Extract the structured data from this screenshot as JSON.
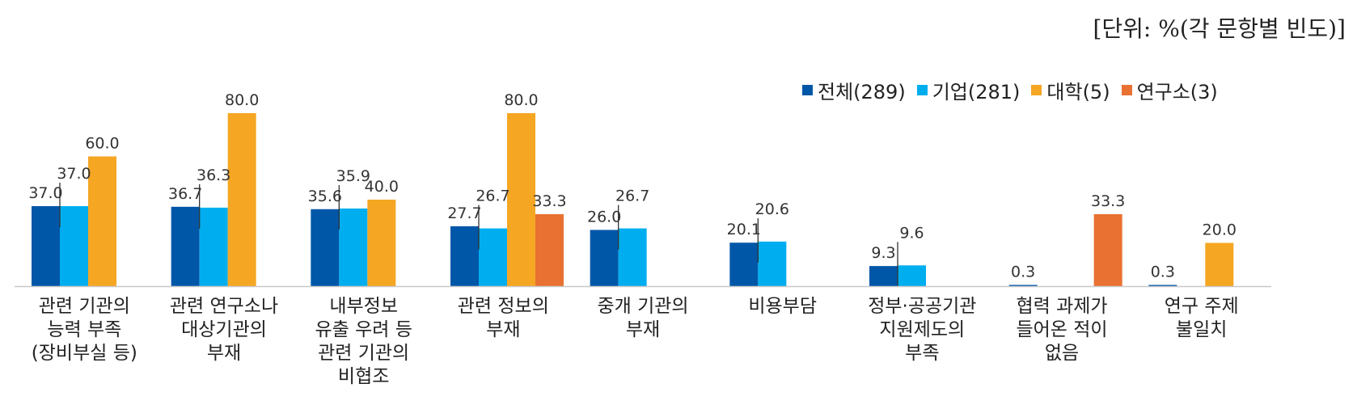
{
  "unit_label": "[단위: %(각 문항별 빈도)]",
  "chart_data": {
    "type": "bar",
    "ylim": [
      0,
      100
    ],
    "grid": false,
    "legend_position": "top-right",
    "categories": [
      "관련 기관의\n능력 부족\n(장비부실 등)",
      "관련 연구소나\n대상기관의\n부재",
      "내부정보\n유출 우려 등\n관련 기관의\n비협조",
      "관련 정보의\n부재",
      "중개 기관의\n부재",
      "비용부담",
      "정부·공공기관\n지원제도의\n부족",
      "협력 과제가\n들어온 적이\n없음",
      "연구 주제\n불일치"
    ],
    "series": [
      {
        "name": "전체(289)",
        "color": "#0057A8",
        "values": [
          37.0,
          36.7,
          35.6,
          27.7,
          26.0,
          20.1,
          9.3,
          0.3,
          0.3
        ]
      },
      {
        "name": "기업(281)",
        "color": "#00AEEF",
        "values": [
          37.0,
          36.3,
          35.9,
          26.7,
          26.7,
          20.6,
          9.6,
          null,
          null
        ]
      },
      {
        "name": "대학(5)",
        "color": "#F5A623",
        "values": [
          60.0,
          80.0,
          40.0,
          80.0,
          null,
          null,
          null,
          null,
          20.0
        ]
      },
      {
        "name": "연구소(3)",
        "color": "#E97132",
        "values": [
          null,
          null,
          null,
          33.3,
          null,
          null,
          null,
          33.3,
          null
        ]
      }
    ]
  }
}
